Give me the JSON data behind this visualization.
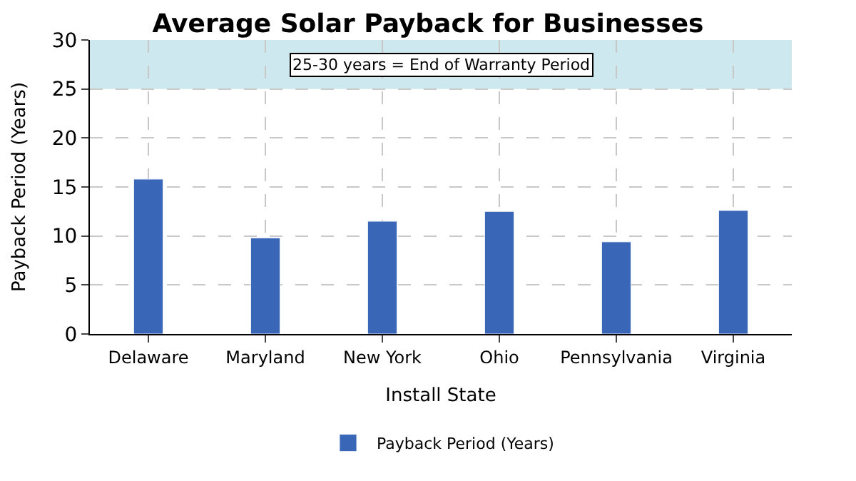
{
  "chart_data": {
    "type": "bar",
    "title": "Average Solar Payback for Businesses",
    "xlabel": "Install State",
    "ylabel": "Payback Period (Years)",
    "categories": [
      "Delaware",
      "Maryland",
      "New York",
      "Ohio",
      "Pennsylvania",
      "Virginia"
    ],
    "series": [
      {
        "name": "Payback Period (Years)",
        "color": "#3a66b8",
        "values": [
          15.8,
          9.8,
          11.5,
          12.5,
          9.4,
          12.6
        ]
      }
    ],
    "ylim": [
      0,
      30
    ],
    "yticks": [
      0,
      5,
      10,
      15,
      20,
      25,
      30
    ],
    "bands": [
      {
        "axis": "y",
        "from": 25,
        "to": 30,
        "label": "25-30 years = End of Warranty Period",
        "color": "#add8e6"
      }
    ],
    "grid": true,
    "legend": "bottom"
  }
}
